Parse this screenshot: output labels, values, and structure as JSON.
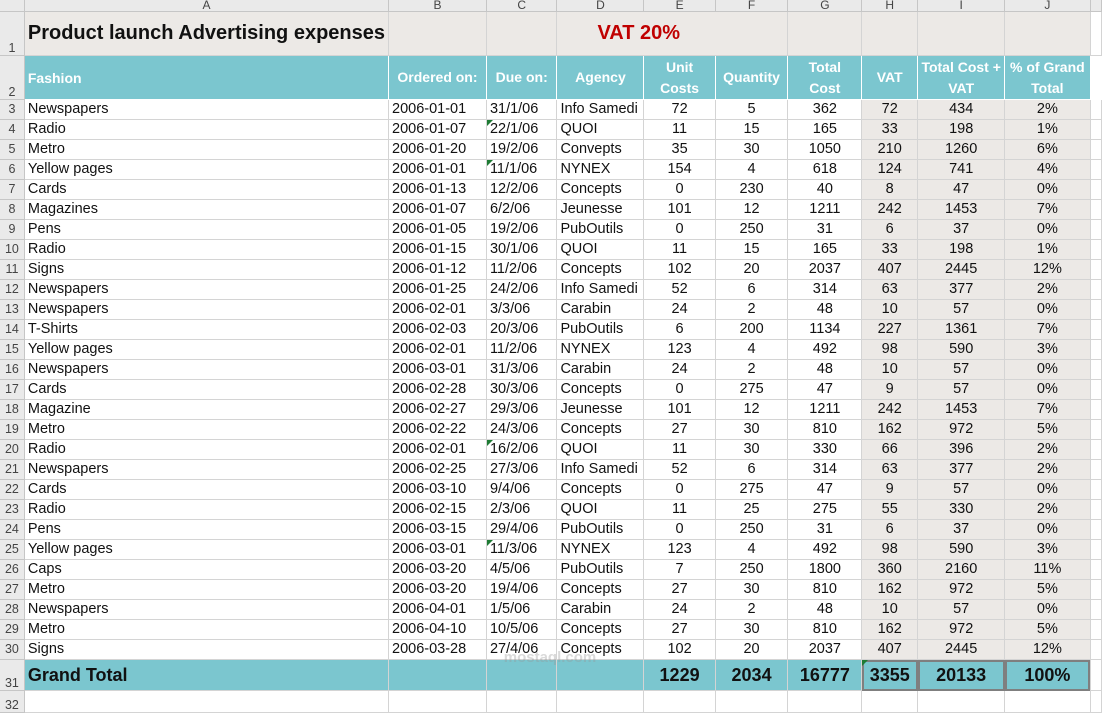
{
  "columns": [
    "A",
    "B",
    "C",
    "D",
    "E",
    "F",
    "G",
    "H",
    "I",
    "J"
  ],
  "title": "Product launch Advertising expenses",
  "vat_label": "VAT  20%",
  "headers": [
    "Fashion",
    "Ordered on:",
    "Due on:",
    "Agency",
    "Unit Costs",
    "Quantity",
    "Total Cost",
    "VAT",
    "Total Cost + VAT",
    "% of Grand Total"
  ],
  "rows": [
    [
      "Newspapers",
      "2006-01-01",
      "31/1/06",
      "Info Samedi",
      "72",
      "5",
      "362",
      "72",
      "434",
      "2%"
    ],
    [
      "Radio",
      "2006-01-07",
      "22/1/06",
      "QUOI",
      "11",
      "15",
      "165",
      "33",
      "198",
      "1%"
    ],
    [
      "Metro",
      "2006-01-20",
      "19/2/06",
      "Convepts",
      "35",
      "30",
      "1050",
      "210",
      "1260",
      "6%"
    ],
    [
      "Yellow pages",
      "2006-01-01",
      "11/1/06",
      "NYNEX",
      "154",
      "4",
      "618",
      "124",
      "741",
      "4%"
    ],
    [
      "Cards",
      "2006-01-13",
      "12/2/06",
      "Concepts",
      "0",
      "230",
      "40",
      "8",
      "47",
      "0%"
    ],
    [
      "Magazines",
      "2006-01-07",
      "6/2/06",
      "Jeunesse",
      "101",
      "12",
      "1211",
      "242",
      "1453",
      "7%"
    ],
    [
      "Pens",
      "2006-01-05",
      "19/2/06",
      "PubOutils",
      "0",
      "250",
      "31",
      "6",
      "37",
      "0%"
    ],
    [
      "Radio",
      "2006-01-15",
      "30/1/06",
      "QUOI",
      "11",
      "15",
      "165",
      "33",
      "198",
      "1%"
    ],
    [
      "Signs",
      "2006-01-12",
      "11/2/06",
      "Concepts",
      "102",
      "20",
      "2037",
      "407",
      "2445",
      "12%"
    ],
    [
      "Newspapers",
      "2006-01-25",
      "24/2/06",
      "Info Samedi",
      "52",
      "6",
      "314",
      "63",
      "377",
      "2%"
    ],
    [
      "Newspapers",
      "2006-02-01",
      "3/3/06",
      "Carabin",
      "24",
      "2",
      "48",
      "10",
      "57",
      "0%"
    ],
    [
      "T-Shirts",
      "2006-02-03",
      "20/3/06",
      "PubOutils",
      "6",
      "200",
      "1134",
      "227",
      "1361",
      "7%"
    ],
    [
      "Yellow pages",
      "2006-02-01",
      "11/2/06",
      "NYNEX",
      "123",
      "4",
      "492",
      "98",
      "590",
      "3%"
    ],
    [
      "Newspapers",
      "2006-03-01",
      "31/3/06",
      "Carabin",
      "24",
      "2",
      "48",
      "10",
      "57",
      "0%"
    ],
    [
      "Cards",
      "2006-02-28",
      "30/3/06",
      "Concepts",
      "0",
      "275",
      "47",
      "9",
      "57",
      "0%"
    ],
    [
      "Magazine",
      "2006-02-27",
      "29/3/06",
      "Jeunesse",
      "101",
      "12",
      "1211",
      "242",
      "1453",
      "7%"
    ],
    [
      "Metro",
      "2006-02-22",
      "24/3/06",
      "Concepts",
      "27",
      "30",
      "810",
      "162",
      "972",
      "5%"
    ],
    [
      "Radio",
      "2006-02-01",
      "16/2/06",
      "QUOI",
      "11",
      "30",
      "330",
      "66",
      "396",
      "2%"
    ],
    [
      "Newspapers",
      "2006-02-25",
      "27/3/06",
      "Info Samedi",
      "52",
      "6",
      "314",
      "63",
      "377",
      "2%"
    ],
    [
      "Cards",
      "2006-03-10",
      "9/4/06",
      "Concepts",
      "0",
      "275",
      "47",
      "9",
      "57",
      "0%"
    ],
    [
      "Radio",
      "2006-02-15",
      "2/3/06",
      "QUOI",
      "11",
      "25",
      "275",
      "55",
      "330",
      "2%"
    ],
    [
      "Pens",
      "2006-03-15",
      "29/4/06",
      "PubOutils",
      "0",
      "250",
      "31",
      "6",
      "37",
      "0%"
    ],
    [
      "Yellow pages",
      "2006-03-01",
      "11/3/06",
      "NYNEX",
      "123",
      "4",
      "492",
      "98",
      "590",
      "3%"
    ],
    [
      "Caps",
      "2006-03-20",
      "4/5/06",
      "PubOutils",
      "7",
      "250",
      "1800",
      "360",
      "2160",
      "11%"
    ],
    [
      "Metro",
      "2006-03-20",
      "19/4/06",
      "Concepts",
      "27",
      "30",
      "810",
      "162",
      "972",
      "5%"
    ],
    [
      "Newspapers",
      "2006-04-01",
      "1/5/06",
      "Carabin",
      "24",
      "2",
      "48",
      "10",
      "57",
      "0%"
    ],
    [
      "Metro",
      "2006-04-10",
      "10/5/06",
      "Concepts",
      "27",
      "30",
      "810",
      "162",
      "972",
      "5%"
    ],
    [
      "Signs",
      "2006-03-28",
      "27/4/06",
      "Concepts",
      "102",
      "20",
      "2037",
      "407",
      "2445",
      "12%"
    ]
  ],
  "flagged_due_rows": [
    1,
    3,
    17,
    22
  ],
  "total": {
    "label": "Grand Total",
    "unit_costs": "1229",
    "quantity": "2034",
    "total_cost": "16777",
    "vat": "3355",
    "total_plus_vat": "20133",
    "pct": "100%"
  },
  "watermark": "mostaql.com",
  "colors": {
    "header_bg": "#7bc6cf",
    "shade": "#ece9e6",
    "vat_red": "#c00000",
    "flag_green": "#1e7b34"
  }
}
